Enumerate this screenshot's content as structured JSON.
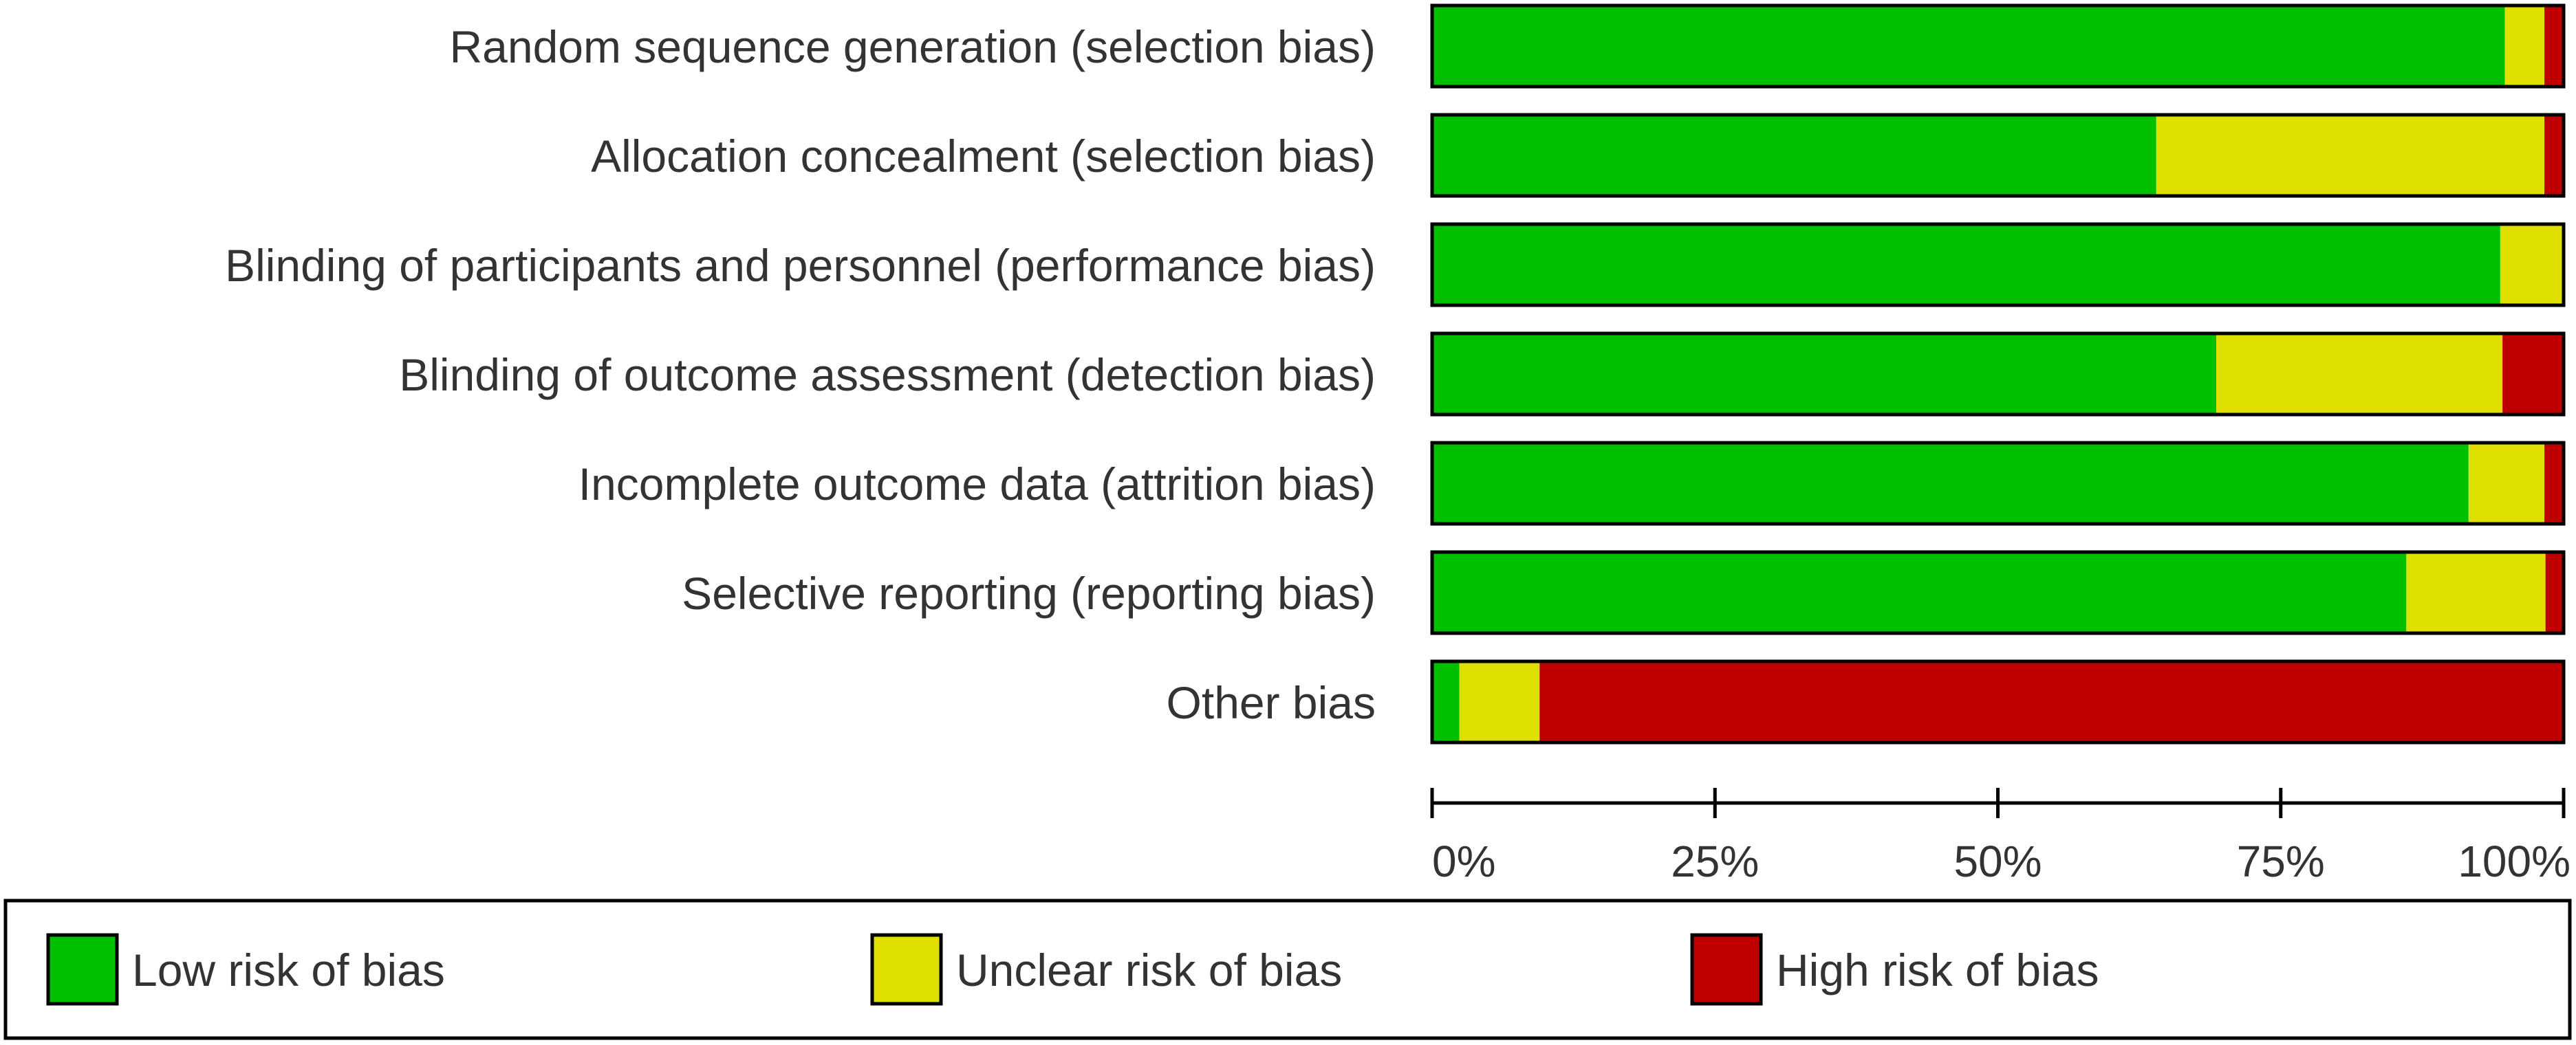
{
  "chart_data": {
    "type": "bar",
    "orientation": "horizontal",
    "stacked": true,
    "percent": true,
    "categories": [
      "Random sequence generation (selection bias)",
      "Allocation concealment (selection bias)",
      "Blinding of participants and personnel (performance bias)",
      "Blinding of outcome assessment (detection bias)",
      "Incomplete outcome data (attrition bias)",
      "Selective reporting (reporting bias)",
      "Other bias"
    ],
    "series": [
      {
        "name": "Low risk of bias",
        "color": "#00c000",
        "values": [
          94.8,
          64.0,
          94.4,
          69.3,
          91.6,
          86.1,
          2.4
        ]
      },
      {
        "name": "Unclear risk of bias",
        "color": "#e0e000",
        "values": [
          3.5,
          34.3,
          5.6,
          25.3,
          6.7,
          12.3,
          7.1
        ]
      },
      {
        "name": "High risk of bias",
        "color": "#c00000",
        "values": [
          1.7,
          1.7,
          0.0,
          5.4,
          1.7,
          1.6,
          90.5
        ]
      }
    ],
    "xlim": [
      0,
      100
    ],
    "xticks": [
      "0%",
      "25%",
      "50%",
      "75%",
      "100%"
    ],
    "xtick_values": [
      0,
      25,
      50,
      75,
      100
    ],
    "title": "",
    "xlabel": "",
    "ylabel": "",
    "grid": false,
    "legend": "bottom"
  }
}
